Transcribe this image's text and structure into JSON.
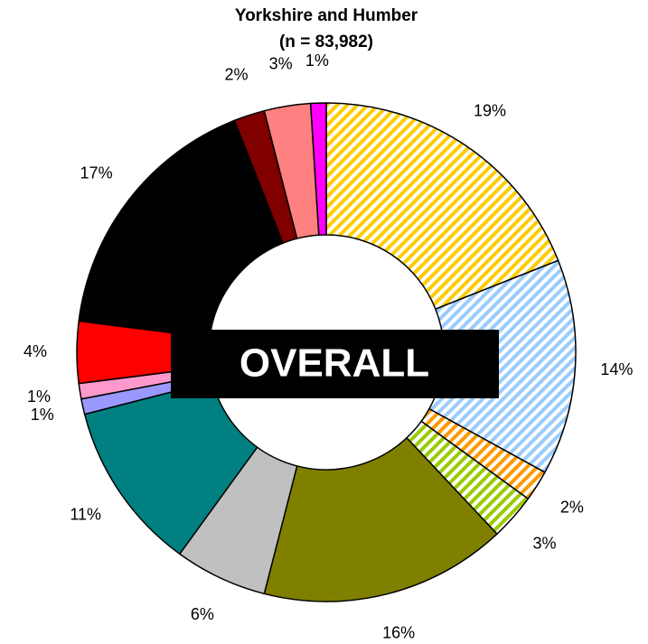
{
  "chart_data": {
    "type": "donut",
    "title": "Yorkshire and Humber",
    "subtitle": "(n = 83,982)",
    "center_label": "OVERALL",
    "values": [
      19,
      14,
      2,
      3,
      16,
      6,
      11,
      1,
      1,
      4,
      17,
      2,
      3,
      1
    ],
    "value_labels": [
      "19%",
      "14%",
      "2%",
      "3%",
      "16%",
      "6%",
      "11%",
      "1%",
      "1%",
      "4%",
      "17%",
      "2%",
      "3%",
      "1%"
    ],
    "colors": [
      "#ffcc00",
      "#99ccff",
      "#ff9900",
      "#99cc00",
      "#808000",
      "#c0c0c0",
      "#008080",
      "#9999ff",
      "#ff99cc",
      "#ff0000",
      "#000000",
      "#800000",
      "#ff8080",
      "#ff00ff"
    ],
    "hatched": [
      true,
      true,
      true,
      true,
      false,
      false,
      false,
      false,
      false,
      false,
      false,
      false,
      false,
      false
    ]
  }
}
